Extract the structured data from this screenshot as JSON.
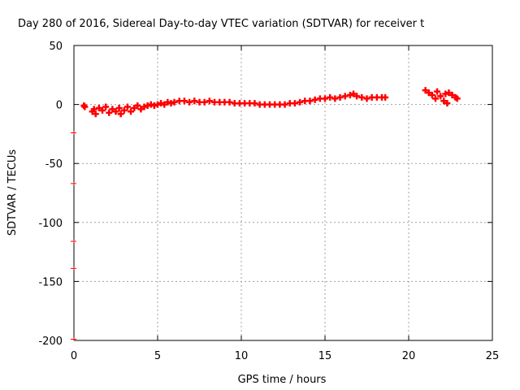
{
  "chart_data": {
    "type": "scatter",
    "title": "Day 280 of 2016, Sidereal Day-to-day VTEC variation (SDTVAR) for receiver t",
    "xlabel": "GPS time / hours",
    "ylabel": "SDTVAR / TECUs",
    "xlim": [
      0,
      25
    ],
    "ylim": [
      -200,
      50
    ],
    "xticks": [
      0,
      5,
      10,
      15,
      20,
      25
    ],
    "yticks": [
      -200,
      -150,
      -100,
      -50,
      0,
      50
    ],
    "xtick_labels": [
      "0",
      "5",
      "10",
      "15",
      "20",
      "25"
    ],
    "ytick_labels": [
      "-200",
      "-150",
      "-100",
      "-50",
      "0",
      "50"
    ],
    "grid": true,
    "marker": "+",
    "series_color": "#ff0000",
    "points": [
      [
        0.6,
        -1
      ],
      [
        0.65,
        -2
      ],
      [
        1.1,
        -6
      ],
      [
        1.2,
        -4
      ],
      [
        1.3,
        -8
      ],
      [
        1.5,
        -3
      ],
      [
        1.7,
        -5
      ],
      [
        1.9,
        -2
      ],
      [
        2.1,
        -7
      ],
      [
        2.3,
        -4
      ],
      [
        2.5,
        -6
      ],
      [
        2.7,
        -3
      ],
      [
        2.8,
        -8
      ],
      [
        3.0,
        -5
      ],
      [
        3.2,
        -2
      ],
      [
        3.4,
        -6
      ],
      [
        3.6,
        -3
      ],
      [
        3.8,
        -1
      ],
      [
        4.0,
        -4
      ],
      [
        4.2,
        -2
      ],
      [
        4.4,
        -1
      ],
      [
        4.6,
        0
      ],
      [
        4.8,
        -1
      ],
      [
        5.0,
        0
      ],
      [
        5.2,
        1
      ],
      [
        5.4,
        0
      ],
      [
        5.6,
        2
      ],
      [
        5.8,
        1
      ],
      [
        6.0,
        2
      ],
      [
        6.3,
        3
      ],
      [
        6.6,
        3
      ],
      [
        6.9,
        2
      ],
      [
        7.2,
        3
      ],
      [
        7.5,
        2
      ],
      [
        7.8,
        2
      ],
      [
        8.1,
        3
      ],
      [
        8.4,
        2
      ],
      [
        8.7,
        2
      ],
      [
        9.0,
        2
      ],
      [
        9.3,
        2
      ],
      [
        9.6,
        1
      ],
      [
        9.9,
        1
      ],
      [
        10.2,
        1
      ],
      [
        10.5,
        1
      ],
      [
        10.8,
        1
      ],
      [
        11.1,
        0
      ],
      [
        11.4,
        0
      ],
      [
        11.7,
        0
      ],
      [
        12.0,
        0
      ],
      [
        12.3,
        0
      ],
      [
        12.6,
        0
      ],
      [
        12.9,
        1
      ],
      [
        13.2,
        1
      ],
      [
        13.5,
        2
      ],
      [
        13.8,
        3
      ],
      [
        14.1,
        3
      ],
      [
        14.4,
        4
      ],
      [
        14.7,
        5
      ],
      [
        15.0,
        5
      ],
      [
        15.3,
        6
      ],
      [
        15.6,
        5
      ],
      [
        15.9,
        6
      ],
      [
        16.2,
        7
      ],
      [
        16.5,
        8
      ],
      [
        16.7,
        9
      ],
      [
        16.9,
        7
      ],
      [
        17.2,
        6
      ],
      [
        17.5,
        5
      ],
      [
        17.8,
        6
      ],
      [
        18.1,
        6
      ],
      [
        18.4,
        6
      ],
      [
        18.6,
        6
      ],
      [
        21.0,
        12
      ],
      [
        21.2,
        10
      ],
      [
        21.4,
        8
      ],
      [
        21.6,
        5
      ],
      [
        21.7,
        11
      ],
      [
        21.9,
        7
      ],
      [
        22.1,
        3
      ],
      [
        22.2,
        9
      ],
      [
        22.3,
        1
      ],
      [
        22.4,
        10
      ],
      [
        22.6,
        8
      ],
      [
        22.8,
        6
      ],
      [
        22.9,
        5
      ]
    ],
    "ymin_edge_marks": [
      -24,
      -67,
      -116,
      -139,
      -199
    ]
  }
}
